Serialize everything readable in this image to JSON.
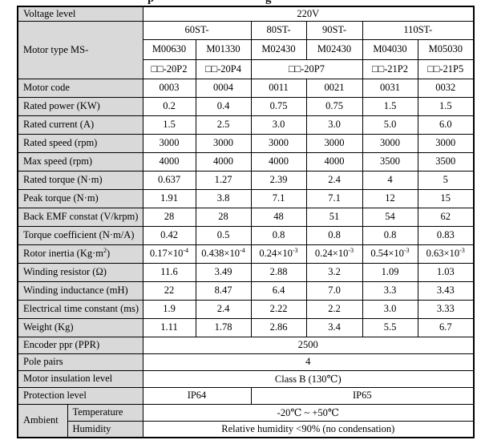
{
  "clipped_heading": {
    "left_fragment": "p",
    "right_fragment": "g"
  },
  "table": {
    "voltage": {
      "label": "Voltage level",
      "value": "220V"
    },
    "motor_type_label": "Motor type MS-",
    "series": [
      "60ST-",
      "80ST-",
      "90ST-",
      "110ST-"
    ],
    "models": [
      "M00630",
      "M01330",
      "M02430",
      "M02430",
      "M04030",
      "M05030"
    ],
    "codes": [
      "□□-20P2",
      "□□-20P4",
      "□□-20P7",
      "□□-21P2",
      "□□-21P5"
    ],
    "rows": [
      {
        "label": "Motor code",
        "values": [
          "0003",
          "0004",
          "0011",
          "0021",
          "0031",
          "0032"
        ]
      },
      {
        "label": "Rated power (KW)",
        "values": [
          "0.2",
          "0.4",
          "0.75",
          "0.75",
          "1.5",
          "1.5"
        ]
      },
      {
        "label": "Rated current (A)",
        "values": [
          "1.5",
          "2.5",
          "3.0",
          "3.0",
          "5.0",
          "6.0"
        ]
      },
      {
        "label": "Rated speed (rpm)",
        "values": [
          "3000",
          "3000",
          "3000",
          "3000",
          "3000",
          "3000"
        ]
      },
      {
        "label": "Max speed (rpm)",
        "values": [
          "4000",
          "4000",
          "4000",
          "4000",
          "3500",
          "3500"
        ]
      },
      {
        "label": "Rated torque (N·m)",
        "values": [
          "0.637",
          "1.27",
          "2.39",
          "2.4",
          "4",
          "5"
        ]
      },
      {
        "label": "Peak torque (N·m)",
        "values": [
          "1.91",
          "3.8",
          "7.1",
          "7.1",
          "12",
          "15"
        ]
      },
      {
        "label": "Back EMF constat (V/krpm)",
        "values": [
          "28",
          "28",
          "48",
          "51",
          "54",
          "62"
        ]
      },
      {
        "label": "Torque coefficient (N·m/A)",
        "values": [
          "0.42",
          "0.5",
          "0.8",
          "0.8",
          "0.8",
          "0.83"
        ]
      },
      {
        "label": "Rotor inertia (Kg·m^{2})",
        "values": [
          "0.17×10^{-4}",
          "0.438×10^{-4}",
          "0.24×10^{-3}",
          "0.24×10^{-3}",
          "0.54×10^{-3}",
          "0.63×10^{-3}"
        ]
      },
      {
        "label": "Winding resistor (Ω)",
        "values": [
          "11.6",
          "3.49",
          "2.88",
          "3.2",
          "1.09",
          "1.03"
        ]
      },
      {
        "label": "Winding inductance (mH)",
        "values": [
          "22",
          "8.47",
          "6.4",
          "7.0",
          "3.3",
          "3.43"
        ]
      },
      {
        "label": "Electrical time constant (ms)",
        "values": [
          "1.9",
          "2.4",
          "2.22",
          "2.2",
          "3.0",
          "3.33"
        ]
      },
      {
        "label": "Weight (Kg)",
        "values": [
          "1.11",
          "1.78",
          "2.86",
          "3.4",
          "5.5",
          "6.7"
        ]
      }
    ],
    "encoder": {
      "label": "Encoder ppr (PPR)",
      "value": "2500"
    },
    "pole_pairs": {
      "label": "Pole pairs",
      "value": "4"
    },
    "insulation": {
      "label": "Motor insulation level",
      "value": "Class B (130℃)"
    },
    "protection": {
      "label": "Protection level",
      "value_left": "IP64",
      "value_right": "IP65"
    },
    "ambient": {
      "label": "Ambient",
      "temperature": {
        "label": "Temperature",
        "value": "-20℃ ~ +50℃"
      },
      "humidity": {
        "label": "Humidity",
        "value": "Relative humidity <90% (no condensation)"
      }
    },
    "colors": {
      "label_bg": "#d9d9d9",
      "border": "#000000"
    }
  }
}
